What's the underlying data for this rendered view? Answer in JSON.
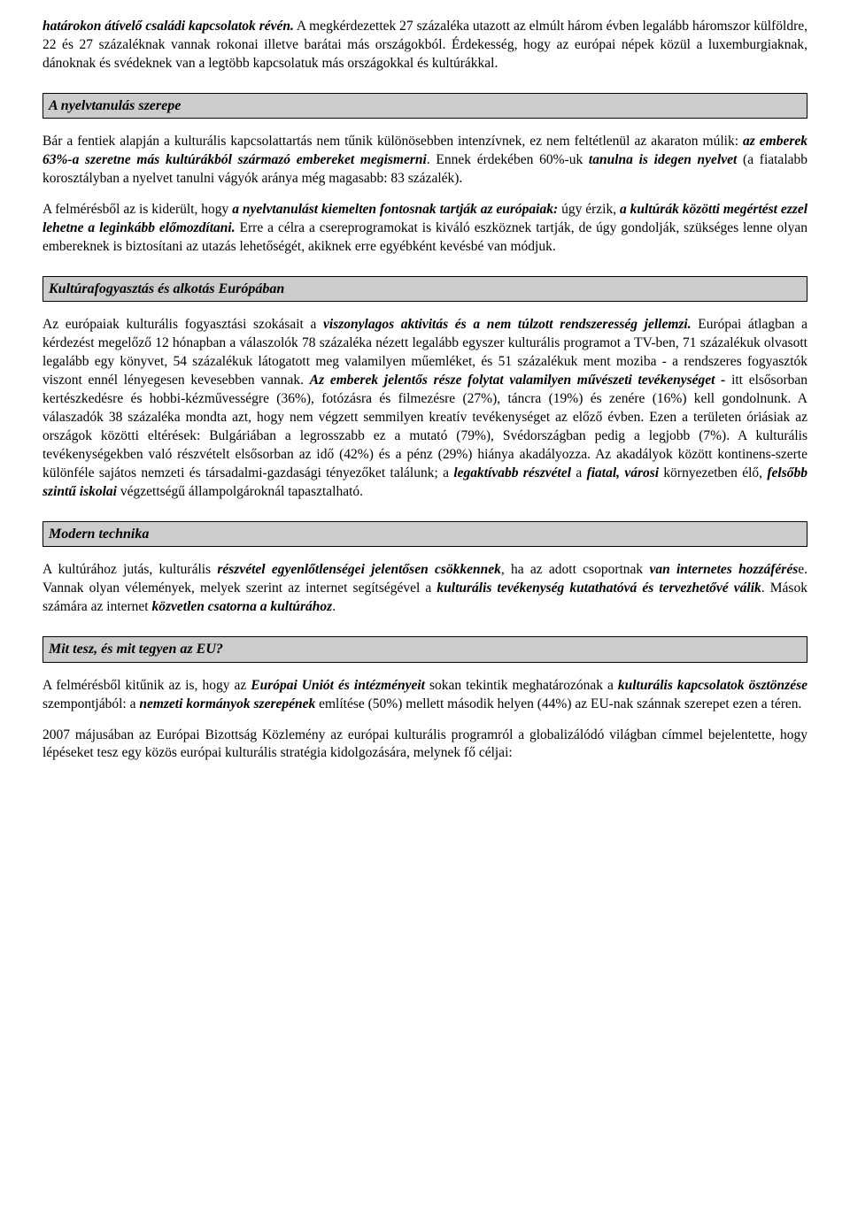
{
  "intro": {
    "p1_part1": "határokon átívelő családi kapcsolatok révén.",
    "p1_part2": " A megkérdezettek 27 százaléka utazott az elmúlt három évben legalább háromszor külföldre, 22 és 27 százaléknak vannak rokonai illetve barátai más országokból. Érdekesség, hogy az európai népek közül a luxemburgiaknak, dánoknak és svédeknek van a legtöbb kapcsolatuk más országokkal és kultúrákkal."
  },
  "section1": {
    "heading": "A nyelvtanulás szerepe",
    "p1_part1": "Bár a fentiek alapján a kulturális kapcsolattartás nem tűnik különösebben intenzívnek, ez nem feltétlenül az akaraton múlik: ",
    "p1_bold1": "az emberek 63%-a szeretne más kultúrákból származó embereket megismerni",
    "p1_part2": ". Ennek érdekében 60%-uk ",
    "p1_bold2": "tanulna is idegen nyelvet",
    "p1_part3": " (a fiatalabb korosztályban a nyelvet tanulni vágyók aránya még magasabb: 83 százalék).",
    "p2_part1": "A felmérésből az is kiderült, hogy ",
    "p2_bold1": "a nyelvtanulást kiemelten fontosnak tartják az európaiak:",
    "p2_part2": " úgy érzik, ",
    "p2_bold2": "a kultúrák közötti megértést ezzel lehetne a leginkább előmozdítani.",
    "p2_part3": " Erre a célra a csereprogramokat is kiváló eszköznek tartják, de úgy gondolják, szükséges lenne olyan embereknek is biztosítani az utazás lehetőségét, akiknek erre egyébként kevésbé van módjuk."
  },
  "section2": {
    "heading": "Kultúrafogyasztás és alkotás Európában",
    "p1_part1": "Az európaiak kulturális fogyasztási szokásait a ",
    "p1_bold1": "viszonylagos aktivitás és a nem túlzott rendszeresség jellemzi.",
    "p1_part2": " Európai átlagban a kérdezést megelőző 12 hónapban a válaszolók 78 százaléka nézett legalább egyszer kulturális programot a TV-ben, 71 százalékuk olvasott legalább egy könyvet, 54 százalékuk látogatott meg valamilyen műemléket, és 51 százalékuk ment moziba - a rendszeres fogyasztók viszont ennél lényegesen kevesebben vannak. ",
    "p1_bold2": "Az emberek jelentős része folytat valamilyen művészeti tevékenységet -",
    "p1_part3": " itt elsősorban kertészkedésre és hobbi-kézművességre (36%), fotózásra és filmezésre (27%), táncra (19%) és zenére (16%) kell gondolnunk. A válaszadók 38 százaléka mondta azt, hogy nem végzett semmilyen kreatív tevékenységet az előző évben. Ezen a területen óriásiak az országok közötti eltérések: Bulgáriában a legrosszabb ez a mutató (79%), Svédországban pedig a legjobb (7%). A kulturális tevékenységekben való részvételt elsősorban az idő (42%) és a pénz (29%) hiánya akadályozza. Az akadályok között kontinens-szerte különféle sajátos nemzeti és társadalmi-gazdasági tényezőket találunk; a ",
    "p1_bold3": "legaktívabb részvétel",
    "p1_part4": " a ",
    "p1_bold4": "fiatal, városi",
    "p1_part5": " környezetben élő, ",
    "p1_bold5": "felsőbb szintű iskolai",
    "p1_part6": " végzettségű állampolgároknál tapasztalható."
  },
  "section3": {
    "heading": "Modern technika",
    "p1_part1": "A kultúrához jutás, kulturális ",
    "p1_bold1": "részvétel egyenlőtlenségei jelentősen csökkennek",
    "p1_part2": ", ha az adott csoportnak ",
    "p1_bold2": "van internetes hozzáférés",
    "p1_part3": "e. Vannak olyan vélemények, melyek szerint az internet segítségével a ",
    "p1_bold3": "kulturális tevékenység kutathatóvá és tervezhetővé válik",
    "p1_part4": ". Mások számára az internet ",
    "p1_bold4": "közvetlen csatorna a kultúrához",
    "p1_part5": "."
  },
  "section4": {
    "heading": "Mit tesz, és mit tegyen az EU?",
    "p1_part1": "A felmérésből kitűnik az is, hogy az ",
    "p1_bold1": "Európai Uniót és intézményeit",
    "p1_part2": " sokan tekintik meghatározónak a ",
    "p1_bold2": "kulturális kapcsolatok ösztönzése",
    "p1_part3": " szempontjából: a ",
    "p1_bold3": "nemzeti kormányok szerepének",
    "p1_part4": " említése (50%) mellett második helyen (44%) az EU-nak szánnak szerepet ezen a téren.",
    "p2": "2007 májusában az Európai Bizottság Közlemény az európai kulturális programról a globalizálódó világban címmel bejelentette, hogy lépéseket tesz egy közös európai kulturális stratégia kidolgozására, melynek fő céljai:"
  }
}
